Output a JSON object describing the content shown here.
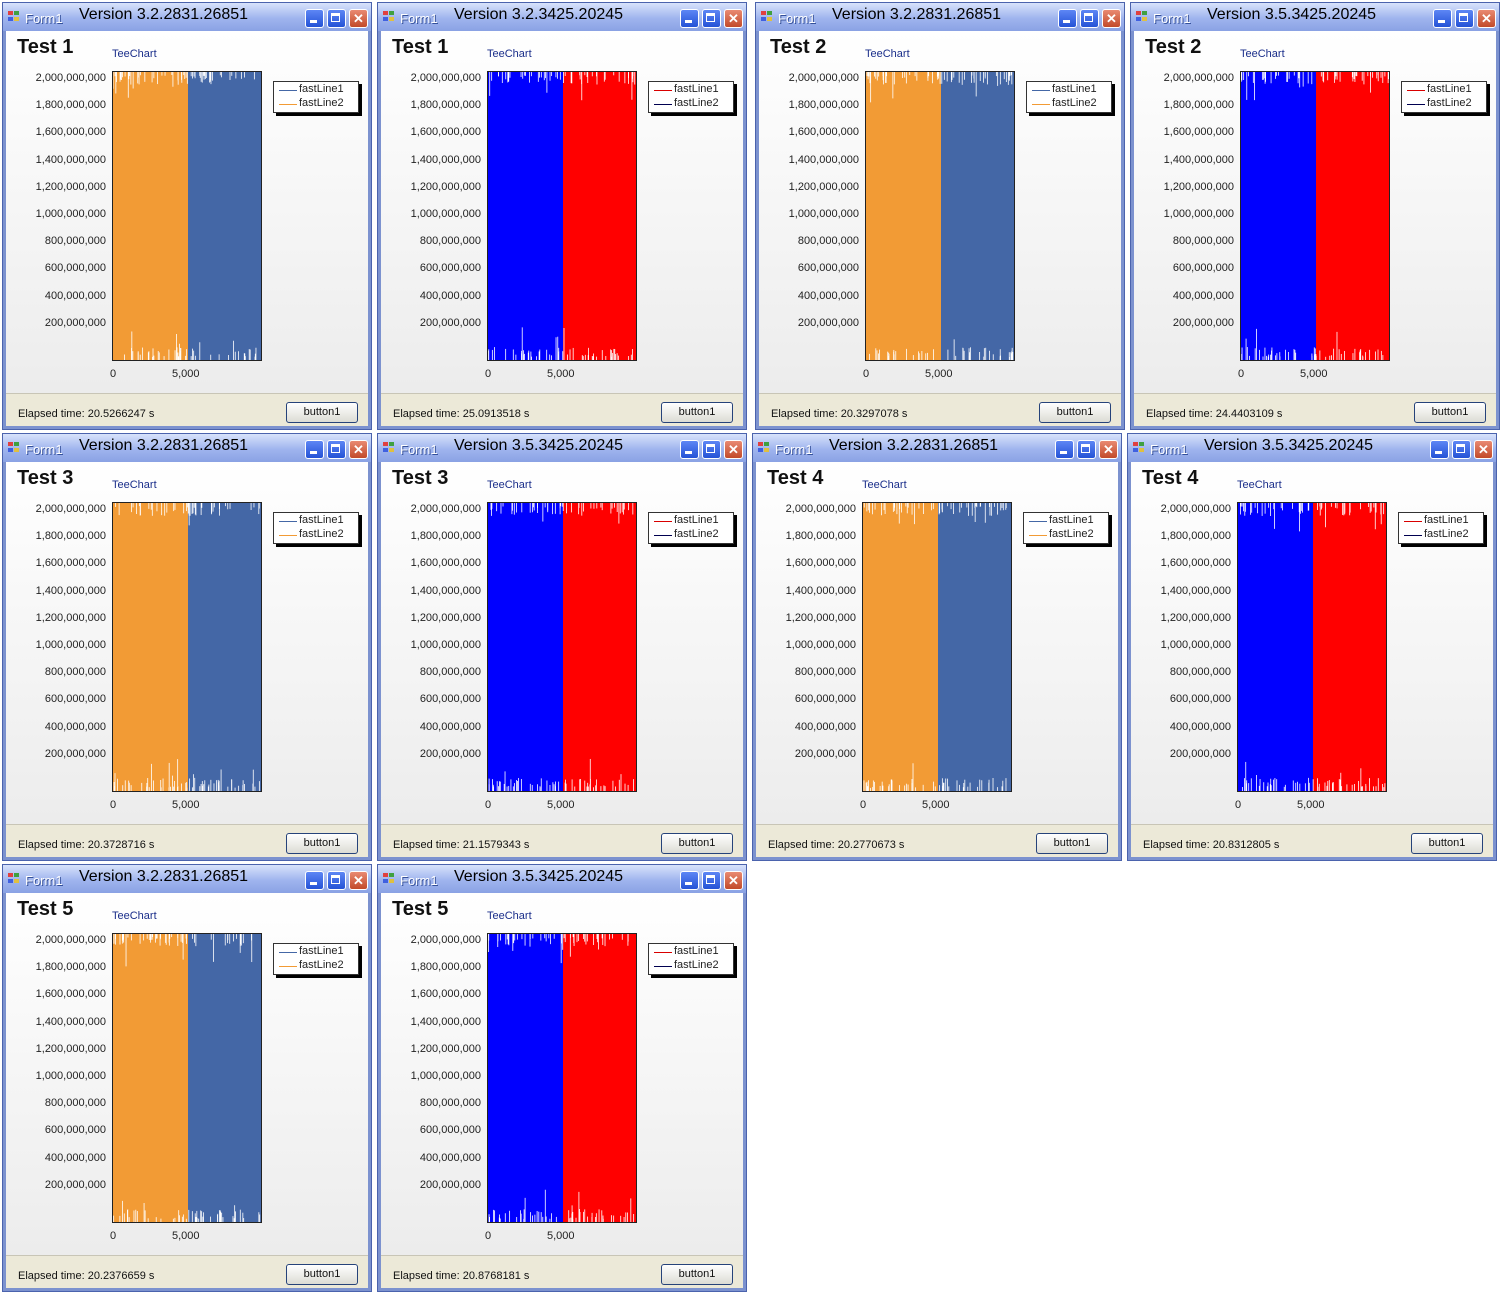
{
  "colors": {
    "old_left": "#f29b35",
    "old_right": "#4467a6",
    "new_left": "#0000ff",
    "new_right": "#ff0000",
    "leg_old1": "#4467a6",
    "leg_old2": "#f29b35",
    "leg_new1": "#d90000",
    "leg_new2": "#000050"
  },
  "common": {
    "form_name": "Form1",
    "teechart": "TeeChart",
    "legend": [
      "fastLine1",
      "fastLine2"
    ],
    "y_ticks": [
      "2,000,000,000",
      "1,800,000,000",
      "1,600,000,000",
      "1,400,000,000",
      "1,200,000,000",
      "1,000,000,000",
      "800,000,000",
      "600,000,000",
      "400,000,000",
      "200,000,000"
    ],
    "x_ticks": [
      "0",
      "5,000"
    ],
    "button": "button1"
  },
  "windows": [
    {
      "version": "Version 3.2.2831.26851",
      "test": "Test 1",
      "elapsed": "Elapsed time: 20.5266247 s"
    },
    {
      "version": "Version 3.2.3425.20245",
      "test": "Test 1",
      "elapsed": "Elapsed time: 25.0913518 s"
    },
    {
      "version": "Version 3.2.2831.26851",
      "test": "Test 2",
      "elapsed": "Elapsed time: 20.3297078 s"
    },
    {
      "version": "Version 3.5.3425.20245",
      "test": "Test 2",
      "elapsed": "Elapsed time: 24.4403109 s"
    },
    {
      "version": "Version 3.2.2831.26851",
      "test": "Test 3",
      "elapsed": "Elapsed time: 20.3728716 s"
    },
    {
      "version": "Version 3.5.3425.20245",
      "test": "Test 3",
      "elapsed": "Elapsed time: 21.1579343 s"
    },
    {
      "version": "Version 3.2.2831.26851",
      "test": "Test 4",
      "elapsed": "Elapsed time: 20.2770673 s"
    },
    {
      "version": "Version 3.5.3425.20245",
      "test": "Test 4",
      "elapsed": "Elapsed time: 20.8312805 s"
    },
    {
      "version": "Version 3.2.2831.26851",
      "test": "Test 5",
      "elapsed": "Elapsed time: 20.2376659 s"
    },
    {
      "version": "Version 3.5.3425.20245",
      "test": "Test 5",
      "elapsed": "Elapsed time: 20.8768181 s"
    }
  ],
  "chart_data": [
    {
      "type": "line",
      "y_tick_labels": [
        "2,000,000,000",
        "1,800,000,000",
        "1,600,000,000",
        "1,400,000,000",
        "1,200,000,000",
        "1,000,000,000",
        "800,000,000",
        "600,000,000",
        "400,000,000",
        "200,000,000"
      ],
      "x_tick_labels": [
        "0",
        "5,000"
      ],
      "series": [
        {
          "name": "fastLine1"
        },
        {
          "name": "fastLine2"
        }
      ],
      "legend": "top-right"
    }
  ]
}
